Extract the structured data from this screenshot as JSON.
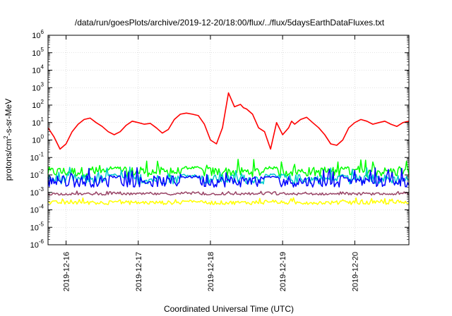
{
  "chart_data": {
    "type": "line",
    "title": "/data/run/goesPlots/archive/2019-12-20/18:00/flux/../flux/5daysEarthDataFluxes.txt",
    "xlabel": "Coordinated Universal Time (UTC)",
    "ylabel": "protons/cm2-s-sr-MeV",
    "ylabel_parts": {
      "pre": "protons/cm",
      "sup": "2",
      "post": "-s-sr-MeV"
    },
    "y_scale": "log",
    "ylim": [
      1e-06,
      1000000.0
    ],
    "y_ticks": [
      {
        "value": 1000000.0,
        "base": "10",
        "exp": "6"
      },
      {
        "value": 100000.0,
        "base": "10",
        "exp": "5"
      },
      {
        "value": 10000.0,
        "base": "10",
        "exp": "4"
      },
      {
        "value": 1000.0,
        "base": "10",
        "exp": "3"
      },
      {
        "value": 100.0,
        "base": "10",
        "exp": "2"
      },
      {
        "value": 10.0,
        "base": "10",
        "exp": "1"
      },
      {
        "value": 1.0,
        "base": "10",
        "exp": "0"
      },
      {
        "value": 0.1,
        "base": "10",
        "exp": "-1"
      },
      {
        "value": 0.01,
        "base": "10",
        "exp": "-2"
      },
      {
        "value": 0.001,
        "base": "10",
        "exp": "-3"
      },
      {
        "value": 0.0001,
        "base": "10",
        "exp": "-4"
      },
      {
        "value": 1e-05,
        "base": "10",
        "exp": "-5"
      },
      {
        "value": 1e-06,
        "base": "10",
        "exp": "-6"
      }
    ],
    "x_range": [
      "2019-12-15T18:00",
      "2019-12-20T18:00"
    ],
    "x_ticks": [
      "2019-12-16",
      "2019-12-17",
      "2019-12-18",
      "2019-12-19",
      "2019-12-20"
    ],
    "grid": true,
    "legend": "none",
    "series": [
      {
        "color": "#ff0000",
        "x": [
          "2019-12-15T18:00",
          "2019-12-15T20:00",
          "2019-12-15T22:00",
          "2019-12-16T00:00",
          "2019-12-16T02:00",
          "2019-12-16T04:00",
          "2019-12-16T06:00",
          "2019-12-16T08:00",
          "2019-12-16T10:00",
          "2019-12-16T12:00",
          "2019-12-16T14:00",
          "2019-12-16T16:00",
          "2019-12-16T18:00",
          "2019-12-16T20:00",
          "2019-12-16T22:00",
          "2019-12-17T00:00",
          "2019-12-17T02:00",
          "2019-12-17T04:00",
          "2019-12-17T06:00",
          "2019-12-17T08:00",
          "2019-12-17T10:00",
          "2019-12-17T12:00",
          "2019-12-17T14:00",
          "2019-12-17T16:00",
          "2019-12-17T18:00",
          "2019-12-17T20:00",
          "2019-12-17T22:00",
          "2019-12-18T00:00",
          "2019-12-18T02:00",
          "2019-12-18T04:00",
          "2019-12-18T06:00",
          "2019-12-18T08:00",
          "2019-12-18T10:00",
          "2019-12-18T11:00",
          "2019-12-18T12:00",
          "2019-12-18T14:00",
          "2019-12-18T16:00",
          "2019-12-18T18:00",
          "2019-12-18T20:00",
          "2019-12-18T22:00",
          "2019-12-19T00:00",
          "2019-12-19T02:00",
          "2019-12-19T03:00",
          "2019-12-19T04:00",
          "2019-12-19T06:00",
          "2019-12-19T08:00",
          "2019-12-19T10:00",
          "2019-12-19T12:00",
          "2019-12-19T14:00",
          "2019-12-19T16:00",
          "2019-12-19T18:00",
          "2019-12-19T20:00",
          "2019-12-19T22:00",
          "2019-12-20T00:00",
          "2019-12-20T02:00",
          "2019-12-20T04:00",
          "2019-12-20T06:00",
          "2019-12-20T08:00",
          "2019-12-20T10:00",
          "2019-12-20T12:00",
          "2019-12-20T14:00",
          "2019-12-20T16:00",
          "2019-12-20T18:00"
        ],
        "y": [
          5,
          1.5,
          0.3,
          0.6,
          3,
          8,
          15,
          18,
          10,
          6,
          3,
          2,
          3,
          7,
          12,
          10,
          8,
          9,
          5,
          2.5,
          4,
          15,
          30,
          35,
          30,
          25,
          8,
          1,
          0.6,
          5,
          500,
          80,
          110,
          70,
          60,
          30,
          5,
          3,
          0.3,
          10,
          2,
          5,
          12,
          8,
          15,
          20,
          10,
          5,
          2,
          0.6,
          0.5,
          1,
          5,
          10,
          15,
          12,
          8,
          10,
          12,
          8,
          6,
          10,
          12
        ]
      },
      {
        "color": "#00ff00",
        "x_range": [
          "2019-12-15T18:00",
          "2019-12-20T18:00"
        ],
        "y_band": [
          0.008,
          0.08
        ]
      },
      {
        "color": "#00cccc",
        "x_range": [
          "2019-12-15T18:00",
          "2019-12-20T18:00"
        ],
        "y_band": [
          0.003,
          0.03
        ]
      },
      {
        "color": "#0000ff",
        "x_range": [
          "2019-12-15T18:00",
          "2019-12-20T18:00"
        ],
        "y_band": [
          0.002,
          0.03
        ]
      },
      {
        "color": "#ffff00",
        "x_range": [
          "2019-12-15T18:00",
          "2019-12-20T18:00"
        ],
        "y_band": [
          0.0002,
          0.0005
        ]
      },
      {
        "color": "#994466",
        "x_range": [
          "2019-12-15T18:00",
          "2019-12-20T18:00"
        ],
        "y_band": [
          0.0007,
          0.0012
        ]
      }
    ]
  }
}
